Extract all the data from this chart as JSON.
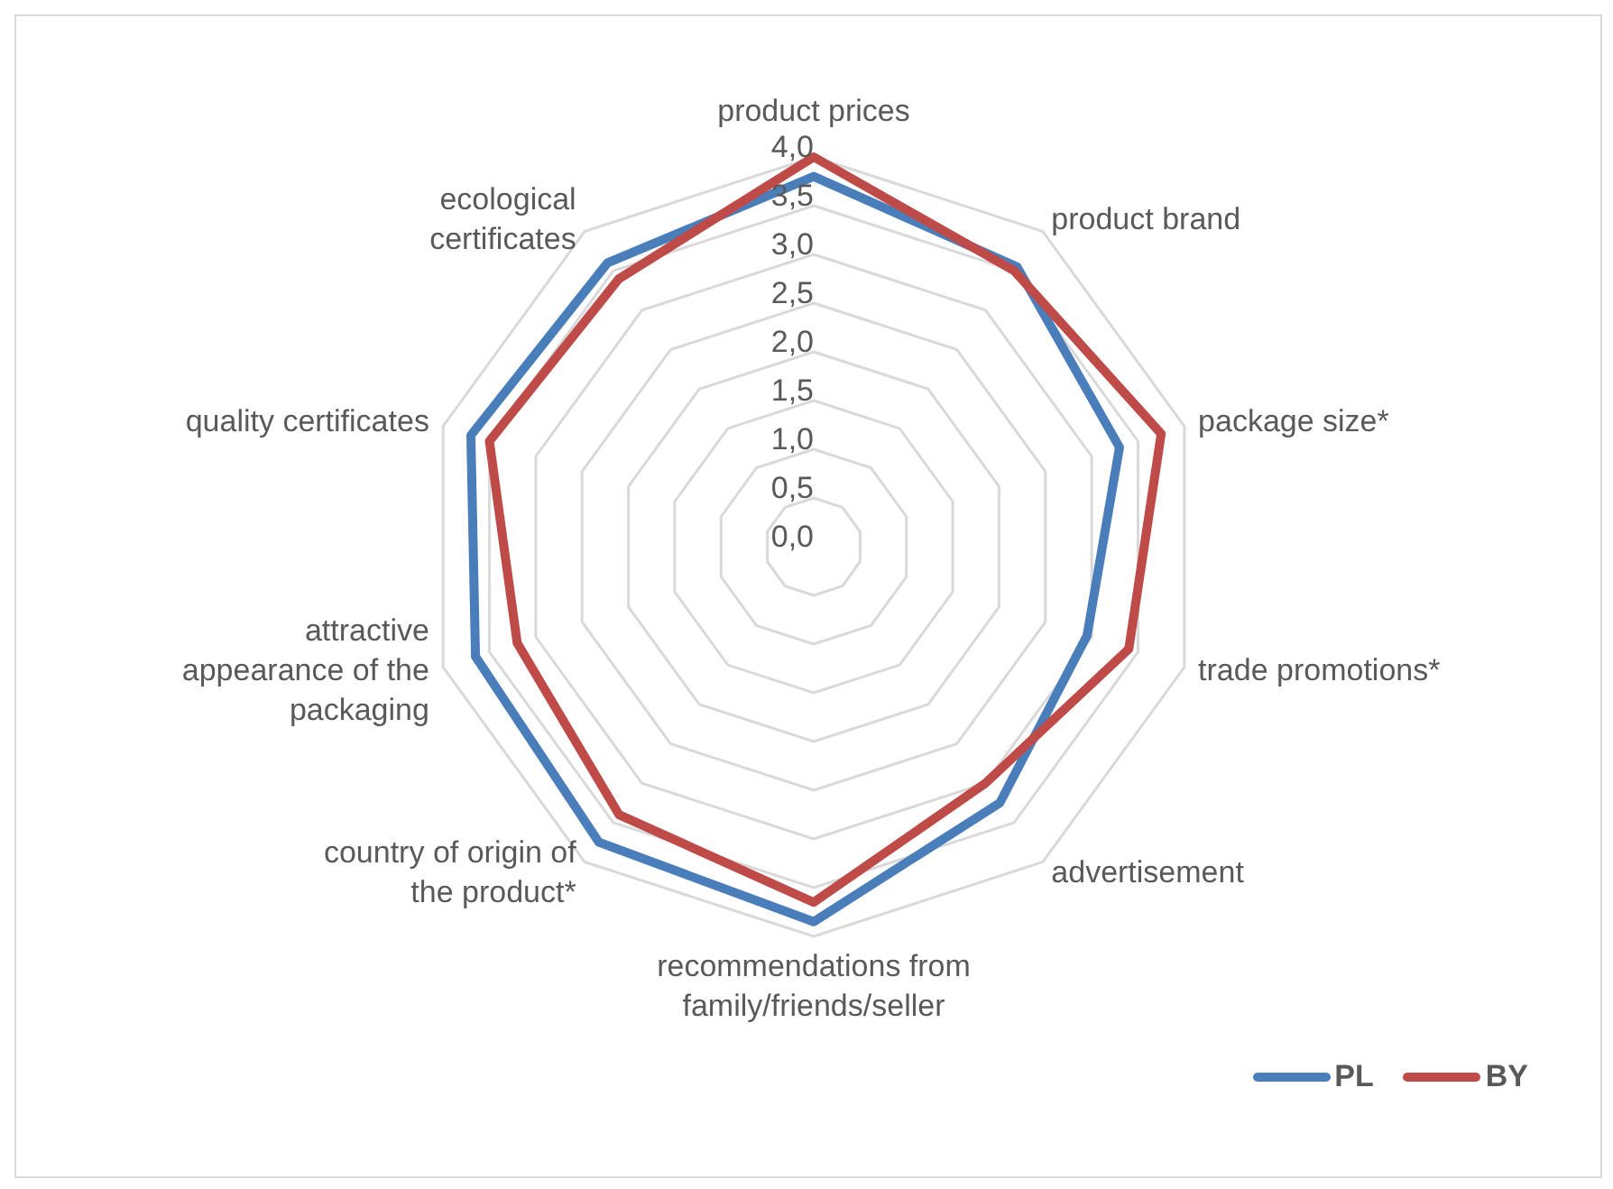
{
  "chart_data": {
    "type": "radar",
    "categories": [
      "product prices",
      "product brand",
      "package size*",
      "trade promotions*",
      "advertisement",
      "recommendations from family/friends/seller",
      "country of origin of the product*",
      "attractive appearance of the packaging",
      "quality certificates",
      "ecological certificates"
    ],
    "series": [
      {
        "name": "PL",
        "color": "#4a7ebb",
        "values": [
          3.8,
          3.55,
          3.3,
          2.95,
          3.25,
          3.85,
          3.75,
          3.65,
          3.7,
          3.6
        ]
      },
      {
        "name": "BY",
        "color": "#be4b48",
        "values": [
          4.0,
          3.5,
          3.75,
          3.4,
          3.0,
          3.65,
          3.4,
          3.2,
          3.5,
          3.4
        ]
      }
    ],
    "ylim": [
      0,
      4
    ],
    "yticks": [
      {
        "value": 0,
        "label": "0,0"
      },
      {
        "value": 0.5,
        "label": "0,5"
      },
      {
        "value": 1,
        "label": "1,0"
      },
      {
        "value": 1.5,
        "label": "1,5"
      },
      {
        "value": 2,
        "label": "2,0"
      },
      {
        "value": 2.5,
        "label": "2,5"
      },
      {
        "value": 3,
        "label": "3,0"
      },
      {
        "value": 3.5,
        "label": "3,5"
      },
      {
        "value": 4,
        "label": "4,0"
      }
    ],
    "grid": true,
    "legend": "bottom right",
    "marker": "none",
    "line_style": "solid"
  }
}
